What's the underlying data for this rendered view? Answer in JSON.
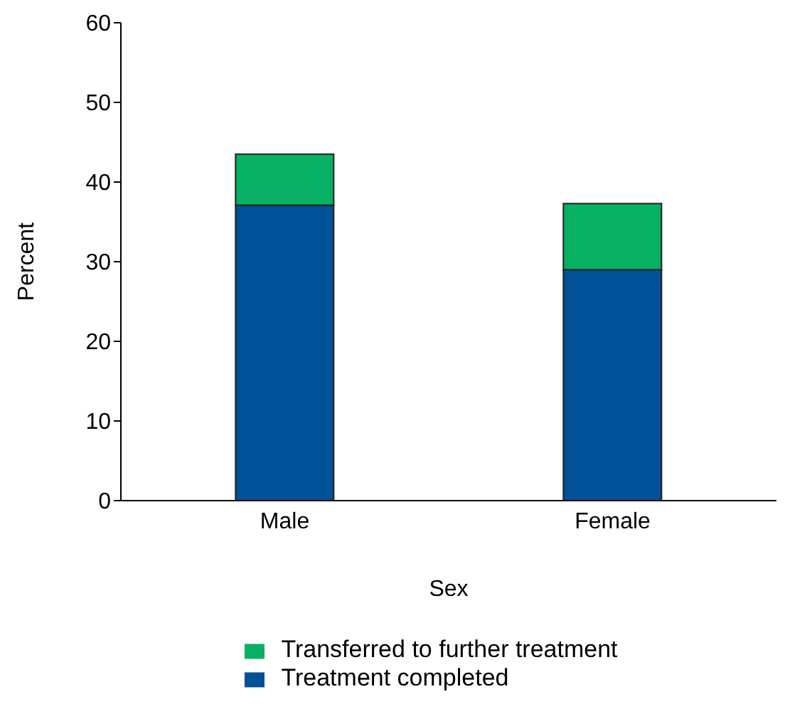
{
  "chart_data": {
    "type": "bar",
    "stacked": true,
    "xlabel": "Sex",
    "ylabel": "Percent",
    "categories": [
      "Male",
      "Female"
    ],
    "series": [
      {
        "name": "Treatment completed",
        "color": "#005196",
        "values": [
          37.1,
          29.0
        ]
      },
      {
        "name": "Transferred to further treatment",
        "color": "#07b062",
        "values": [
          6.4,
          8.3
        ]
      }
    ],
    "ylim": [
      0,
      60
    ],
    "yticks": [
      0,
      10,
      20,
      30,
      40,
      50,
      60
    ],
    "grid": false,
    "legend": "bottom"
  }
}
